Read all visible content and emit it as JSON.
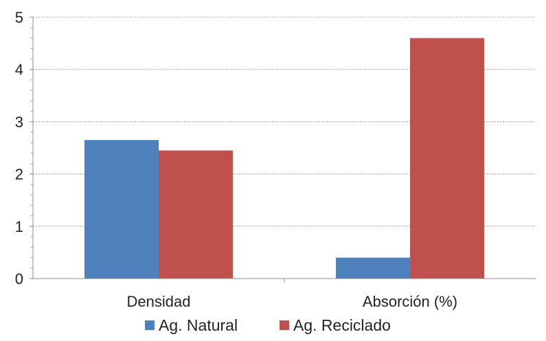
{
  "chart_data": {
    "type": "bar",
    "categories": [
      "Densidad",
      "Absorción (%)"
    ],
    "series": [
      {
        "name": "Ag. Natural",
        "values": [
          2.65,
          0.4
        ],
        "color": "#4F81BD"
      },
      {
        "name": "Ag. Reciclado",
        "values": [
          2.45,
          4.6
        ],
        "color": "#C0504D"
      }
    ],
    "ylim": [
      0,
      5
    ],
    "yticks": [
      "0",
      "1",
      "2",
      "3",
      "4",
      "5"
    ],
    "grid": true,
    "grid_style": "dashed",
    "legend_position": "bottom",
    "title": "",
    "xlabel": "",
    "ylabel": ""
  }
}
